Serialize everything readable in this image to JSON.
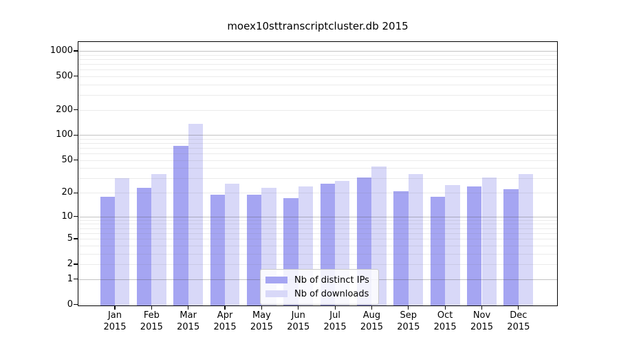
{
  "chart_data": {
    "type": "bar",
    "title": "moex10sttranscriptcluster.db 2015",
    "categories": [
      "Jan",
      "Feb",
      "Mar",
      "Apr",
      "May",
      "Jun",
      "Jul",
      "Aug",
      "Sep",
      "Oct",
      "Nov",
      "Dec"
    ],
    "x_tick_year": "2015",
    "series": [
      {
        "name": "Nb of distinct IPs",
        "color": "#a5a5f2",
        "values": [
          18,
          23,
          74,
          19,
          19,
          17,
          26,
          31,
          21,
          18,
          24,
          22
        ]
      },
      {
        "name": "Nb of downloads",
        "color": "#d8d8f8",
        "values": [
          30,
          34,
          135,
          26,
          23,
          24,
          28,
          42,
          34,
          25,
          31,
          34
        ]
      }
    ],
    "y_ticks": [
      0,
      1,
      2,
      5,
      10,
      20,
      50,
      100,
      200,
      500,
      1000
    ],
    "y_scale": "log10(1+value)",
    "ylim": [
      0,
      1100
    ],
    "grid": true,
    "grid_major_values": [
      1,
      10,
      100,
      1000
    ],
    "grid_minor_values": [
      2,
      3,
      4,
      5,
      6,
      7,
      8,
      9,
      20,
      30,
      40,
      50,
      60,
      70,
      80,
      90,
      200,
      300,
      400,
      500,
      600,
      700,
      800,
      900
    ],
    "legend_position": "inside-bottom-center",
    "axis_color": "#000000",
    "background": "#ffffff"
  }
}
